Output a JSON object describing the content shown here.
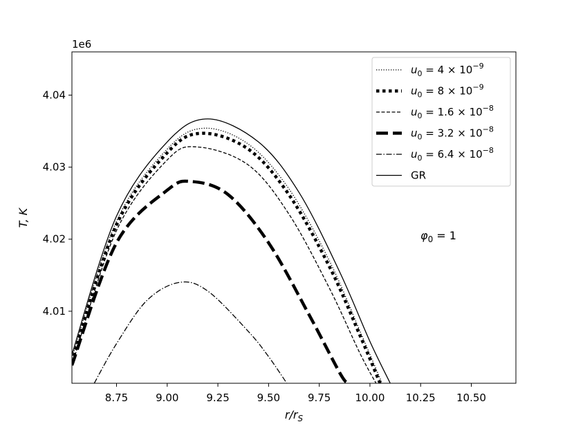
{
  "chart_data": {
    "type": "line",
    "offset_text": "1e6",
    "xlabel": "r/r_S",
    "ylabel": "T, K",
    "xlim": [
      8.53,
      10.72
    ],
    "ylim": [
      4.0,
      4.046
    ],
    "x_ticks": [
      8.75,
      9.0,
      9.25,
      9.5,
      9.75,
      10.0,
      10.25,
      10.5
    ],
    "x_tick_labels": [
      "8.75",
      "9.00",
      "9.25",
      "9.50",
      "9.75",
      "10.00",
      "10.25",
      "10.50"
    ],
    "y_ticks": [
      4.01,
      4.02,
      4.03,
      4.04
    ],
    "y_tick_labels": [
      "4.01",
      "4.02",
      "4.03",
      "4.04"
    ],
    "grid": false,
    "legend_position": "top-right",
    "annotation": {
      "base": "φ",
      "sub": "0",
      "rest": " = 1"
    },
    "series": [
      {
        "label_base": "u",
        "label_sub": "0",
        "label_coef": " = 4 × 10",
        "label_exp": "−9",
        "style": "dotted",
        "width": 1.3,
        "x": [
          8.53,
          8.75,
          9.0,
          9.18,
          9.4,
          9.6,
          9.8,
          9.95,
          10.06
        ],
        "y": [
          4.0035,
          4.0225,
          4.0325,
          4.0354,
          4.0332,
          4.027,
          4.017,
          4.0073,
          4.0
        ]
      },
      {
        "label_base": "u",
        "label_sub": "0",
        "label_coef": " = 8 × 10",
        "label_exp": "−9",
        "style": "thickdot",
        "width": 4.5,
        "x": [
          8.53,
          8.75,
          9.0,
          9.17,
          9.4,
          9.6,
          9.8,
          9.95,
          10.05
        ],
        "y": [
          4.003,
          4.022,
          4.032,
          4.0347,
          4.0325,
          4.0262,
          4.0162,
          4.0067,
          4.0
        ]
      },
      {
        "label_base": "u",
        "label_sub": "0",
        "label_coef": " = 1.6 × 10",
        "label_exp": "−8",
        "style": "dashed",
        "width": 1.3,
        "x": [
          8.53,
          8.75,
          9.0,
          9.15,
          9.4,
          9.6,
          9.8,
          9.95,
          10.03
        ],
        "y": [
          4.0025,
          4.0212,
          4.031,
          4.0328,
          4.0303,
          4.0235,
          4.0132,
          4.0042,
          4.0
        ]
      },
      {
        "label_base": "u",
        "label_sub": "0",
        "label_coef": " = 3.2 × 10",
        "label_exp": "−8",
        "style": "thickdash",
        "width": 4.5,
        "x": [
          8.53,
          8.75,
          9.0,
          9.12,
          9.3,
          9.5,
          9.7,
          9.85,
          9.89
        ],
        "y": [
          4.0025,
          4.0195,
          4.0268,
          4.028,
          4.0262,
          4.0195,
          4.0095,
          4.0015,
          4.0
        ]
      },
      {
        "label_base": "u",
        "label_sub": "0",
        "label_coef": " = 6.4 × 10",
        "label_exp": "−8",
        "style": "dashdot",
        "width": 1.3,
        "x": [
          8.64,
          8.75,
          8.9,
          9.06,
          9.2,
          9.4,
          9.5,
          9.59
        ],
        "y": [
          4.0,
          4.0055,
          4.0115,
          4.014,
          4.0128,
          4.0072,
          4.0037,
          4.0
        ]
      },
      {
        "label_base": "GR",
        "label_sub": "",
        "label_coef": "",
        "label_exp": "",
        "style": "solid",
        "width": 1.3,
        "x": [
          8.53,
          8.75,
          9.0,
          9.2,
          9.45,
          9.65,
          9.85,
          10.0,
          10.1
        ],
        "y": [
          4.004,
          4.0232,
          4.0335,
          4.0367,
          4.0335,
          4.0265,
          4.0155,
          4.0058,
          4.0
        ]
      }
    ]
  }
}
